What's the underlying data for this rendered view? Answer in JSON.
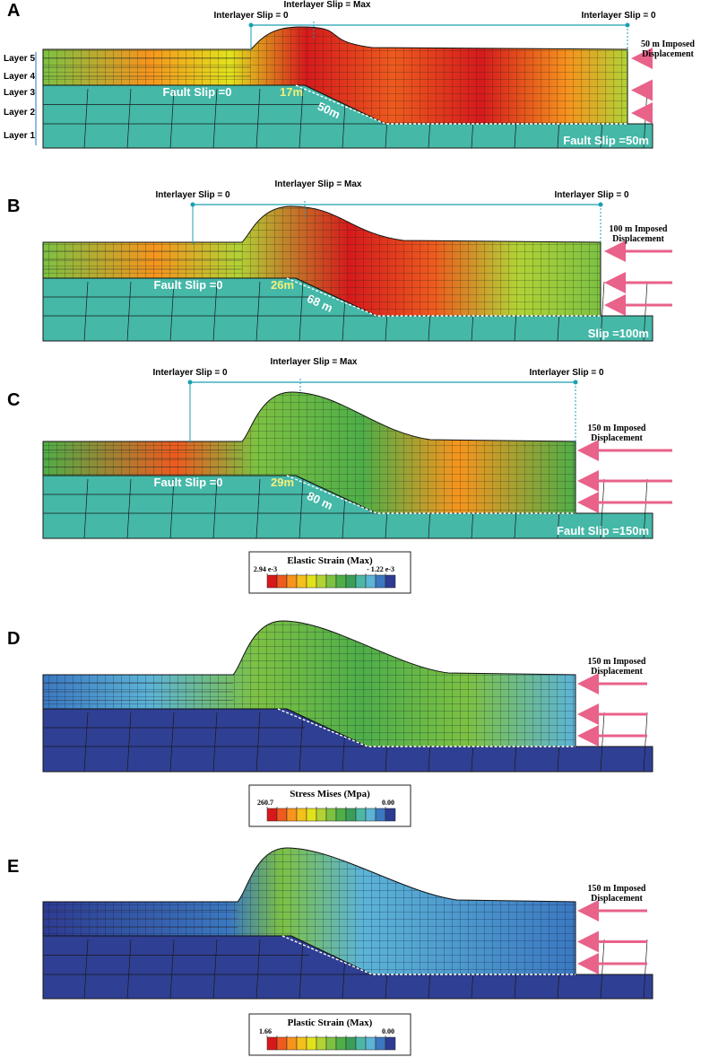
{
  "panels": [
    {
      "label": "A",
      "interlayer": {
        "left": "Interlayer Slip = 0",
        "mid": "Interlayer Slip = Max",
        "right": "Interlayer Slip = 0"
      },
      "imposed": [
        "50 m Imposed",
        "Displacement"
      ],
      "fault_left": "Fault Slip =0",
      "fault_mid": "17m",
      "fault_ramp": "50m",
      "fault_right": "Fault Slip =50m",
      "layers": [
        "Layer 5",
        "Layer 4",
        "Layer 3",
        "Layer 2",
        "Layer 1"
      ],
      "color_field": "Elastic Strain (Max)"
    },
    {
      "label": "B",
      "interlayer": {
        "left": "Interlayer Slip = 0",
        "mid": "Interlayer Slip = Max",
        "right": "Interlayer Slip = 0"
      },
      "imposed": [
        "100 m Imposed",
        "Displacement"
      ],
      "fault_left": "Fault Slip =0",
      "fault_mid": "26m",
      "fault_ramp": "68 m",
      "fault_right": "Slip =100m",
      "color_field": "Elastic Strain (Max)"
    },
    {
      "label": "C",
      "interlayer": {
        "left": "Interlayer Slip = 0",
        "mid": "Interlayer Slip = Max",
        "right": "Interlayer Slip = 0"
      },
      "imposed": [
        "150 m Imposed",
        "Displacement"
      ],
      "fault_left": "Fault Slip =0",
      "fault_mid": "29m",
      "fault_ramp": "80 m",
      "fault_right": "Fault Slip =150m",
      "color_field": "Elastic Strain (Max)"
    },
    {
      "label": "D",
      "imposed": [
        "150 m Imposed",
        "Displacement"
      ],
      "color_field": "Stress Mises (Mpa)"
    },
    {
      "label": "E",
      "imposed": [
        "150 m Imposed",
        "Displacement"
      ],
      "color_field": "Plastic Strain (Max)"
    }
  ],
  "legends": [
    {
      "title": "Elastic Strain (Max)",
      "max": "2.94 e-3",
      "min": "- 1.22 e-3"
    },
    {
      "title": "Stress Mises (Mpa)",
      "max": "260.7",
      "min": "0.00"
    },
    {
      "title": "Plastic Strain (Max)",
      "max": "1.66",
      "min": "0.00"
    }
  ],
  "colors": {
    "teal": "#45b8a8",
    "navy": "#2f3f93",
    "arrow": "#e8628a",
    "cyan_line": "#1a9fb0",
    "scale": [
      "#d7191c",
      "#ef5a1e",
      "#f7941d",
      "#f4c01c",
      "#e2e21c",
      "#b2d235",
      "#7dc142",
      "#4fae48",
      "#3a9e5b",
      "#4db7a5",
      "#5cb4d6",
      "#3b78c0",
      "#2e3b92"
    ]
  }
}
